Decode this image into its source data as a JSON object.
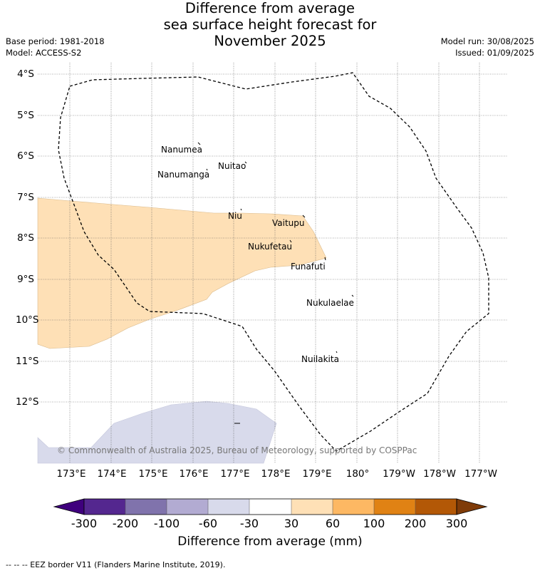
{
  "title_lines": [
    "Difference from average",
    "sea surface height forecast for",
    "November 2025"
  ],
  "meta_left": [
    "Base period: 1981-2018",
    "Model: ACCESS-S2"
  ],
  "meta_right": [
    "Model run: 30/08/2025",
    "Issued: 01/09/2025"
  ],
  "lat_ticks": [
    "4°S",
    "5°S",
    "6°S",
    "7°S",
    "8°S",
    "9°S",
    "10°S",
    "11°S",
    "12°S"
  ],
  "lon_ticks": [
    "173°E",
    "174°E",
    "175°E",
    "176°E",
    "177°E",
    "178°E",
    "179°E",
    "180°",
    "179°W",
    "178°W",
    "177°W"
  ],
  "islands": [
    "Nanumea",
    "Nuitao",
    "Nanumanga",
    "Niu",
    "Vaitupu",
    "Nukufetau",
    "Funafuti",
    "Nukulaelae",
    "Nuilakita"
  ],
  "copyright": "© Commonwealth of Australia 2025, Bureau of Meteorology, supported by COSPPac",
  "colorbar": {
    "labels": [
      "-300",
      "-200",
      "-100",
      "-60",
      "-30",
      "30",
      "60",
      "100",
      "200",
      "300"
    ],
    "colors": [
      "#3f007d",
      "#54278f",
      "#8073ac",
      "#b2abd2",
      "#d8daeb",
      "#ffffff",
      "#fee0b6",
      "#fdb863",
      "#e08214",
      "#b35806",
      "#7f3b08"
    ],
    "title": "Difference from average (mm)"
  },
  "footnote": "--  --  -- EEZ border V11 (Flanders Marine Institute, 2019).",
  "anomaly_colors": {
    "positive_30_60": "#fee0b6",
    "negative_30_60": "#d8daeb"
  }
}
